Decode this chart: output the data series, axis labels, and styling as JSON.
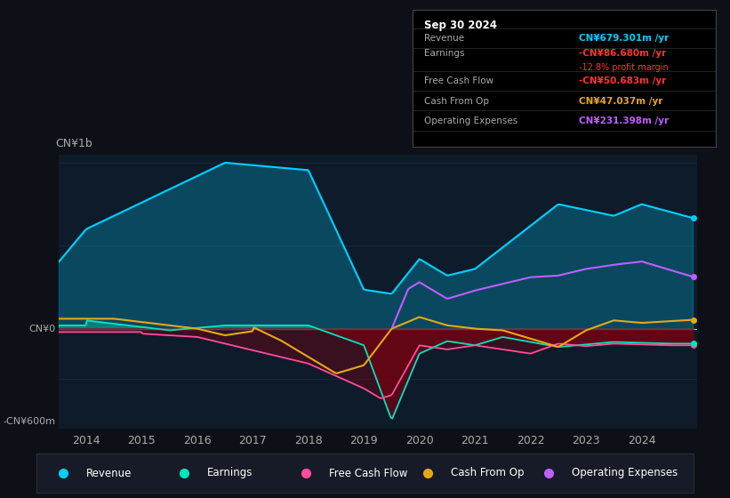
{
  "bg_color": "#0d1117",
  "plot_bg_color": "#0d1b2a",
  "y_label_top": "CN¥1b",
  "y_label_bottom": "-CN¥600m",
  "y_zero_label": "CN¥0",
  "x_ticks": [
    2014,
    2015,
    2016,
    2017,
    2018,
    2019,
    2020,
    2021,
    2022,
    2023,
    2024
  ],
  "colors": {
    "revenue": "#00cfff",
    "earnings": "#00e5c0",
    "free_cash_flow": "#ff4d9e",
    "cash_from_op": "#e6a817",
    "operating_expenses": "#bf5fff"
  },
  "info_box": {
    "date": "Sep 30 2024",
    "revenue_label": "Revenue",
    "revenue_value": "CN¥679.301m /yr",
    "revenue_color": "#00cfff",
    "earnings_label": "Earnings",
    "earnings_value": "-CN¥86.680m /yr",
    "earnings_color": "#ff3333",
    "profit_margin": "-12.8% profit margin",
    "profit_margin_color": "#ff3333",
    "fcf_label": "Free Cash Flow",
    "fcf_value": "-CN¥50.683m /yr",
    "fcf_color": "#ff3333",
    "cashop_label": "Cash From Op",
    "cashop_value": "CN¥47.037m /yr",
    "cashop_color": "#e6a817",
    "opex_label": "Operating Expenses",
    "opex_value": "CN¥231.398m /yr",
    "opex_color": "#bf5fff"
  },
  "legend": [
    {
      "label": "Revenue",
      "color": "#00cfff"
    },
    {
      "label": "Earnings",
      "color": "#00e5c0"
    },
    {
      "label": "Free Cash Flow",
      "color": "#ff4d9e"
    },
    {
      "label": "Cash From Op",
      "color": "#e6a817"
    },
    {
      "label": "Operating Expenses",
      "color": "#bf5fff"
    }
  ]
}
